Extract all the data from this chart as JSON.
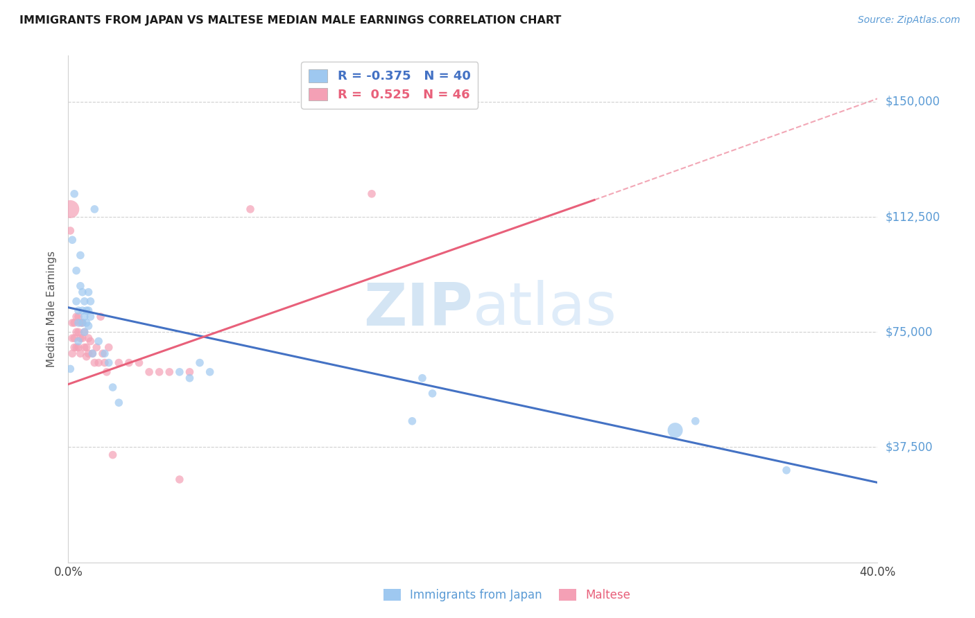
{
  "title": "IMMIGRANTS FROM JAPAN VS MALTESE MEDIAN MALE EARNINGS CORRELATION CHART",
  "source": "Source: ZipAtlas.com",
  "ylabel": "Median Male Earnings",
  "yticks": [
    37500,
    75000,
    112500,
    150000
  ],
  "ytick_labels": [
    "$37,500",
    "$75,000",
    "$112,500",
    "$150,000"
  ],
  "xmin": 0.0,
  "xmax": 0.4,
  "ymin": 0,
  "ymax": 165000,
  "legend_japan": "Immigrants from Japan",
  "legend_maltese": "Maltese",
  "r_japan": "-0.375",
  "n_japan": "40",
  "r_maltese": "0.525",
  "n_maltese": "46",
  "color_japan": "#9ec8f0",
  "color_maltese": "#f4a0b5",
  "line_color_japan": "#4472c4",
  "line_color_maltese": "#e8607a",
  "watermark_zip": "ZIP",
  "watermark_atlas": "atlas",
  "japan_x": [
    0.001,
    0.002,
    0.003,
    0.004,
    0.004,
    0.005,
    0.005,
    0.005,
    0.006,
    0.006,
    0.007,
    0.007,
    0.007,
    0.008,
    0.008,
    0.008,
    0.009,
    0.009,
    0.01,
    0.01,
    0.01,
    0.011,
    0.011,
    0.012,
    0.013,
    0.015,
    0.018,
    0.02,
    0.022,
    0.025,
    0.055,
    0.06,
    0.065,
    0.07,
    0.17,
    0.175,
    0.18,
    0.3,
    0.31,
    0.355
  ],
  "japan_y": [
    63000,
    105000,
    120000,
    95000,
    85000,
    82000,
    78000,
    72000,
    100000,
    90000,
    88000,
    82000,
    78000,
    85000,
    80000,
    75000,
    82000,
    78000,
    88000,
    82000,
    77000,
    85000,
    80000,
    68000,
    115000,
    72000,
    68000,
    65000,
    57000,
    52000,
    62000,
    60000,
    65000,
    62000,
    46000,
    60000,
    55000,
    43000,
    46000,
    30000
  ],
  "japan_size": [
    70,
    70,
    70,
    70,
    70,
    70,
    70,
    70,
    70,
    70,
    70,
    70,
    70,
    70,
    70,
    70,
    70,
    70,
    70,
    70,
    70,
    70,
    70,
    70,
    70,
    70,
    70,
    70,
    70,
    70,
    70,
    70,
    70,
    70,
    70,
    70,
    70,
    250,
    70,
    70
  ],
  "maltese_x": [
    0.001,
    0.001,
    0.002,
    0.002,
    0.002,
    0.003,
    0.003,
    0.003,
    0.004,
    0.004,
    0.004,
    0.005,
    0.005,
    0.005,
    0.006,
    0.006,
    0.006,
    0.007,
    0.007,
    0.008,
    0.008,
    0.009,
    0.009,
    0.01,
    0.01,
    0.011,
    0.012,
    0.013,
    0.014,
    0.015,
    0.016,
    0.017,
    0.018,
    0.019,
    0.02,
    0.022,
    0.025,
    0.03,
    0.035,
    0.04,
    0.045,
    0.05,
    0.055,
    0.06,
    0.09,
    0.15
  ],
  "maltese_y": [
    115000,
    108000,
    78000,
    73000,
    68000,
    78000,
    73000,
    70000,
    80000,
    75000,
    70000,
    80000,
    75000,
    70000,
    78000,
    73000,
    68000,
    78000,
    73000,
    75000,
    70000,
    70000,
    67000,
    73000,
    68000,
    72000,
    68000,
    65000,
    70000,
    65000,
    80000,
    68000,
    65000,
    62000,
    70000,
    35000,
    65000,
    65000,
    65000,
    62000,
    62000,
    62000,
    27000,
    62000,
    115000,
    120000
  ],
  "maltese_size": [
    350,
    70,
    70,
    70,
    70,
    70,
    70,
    70,
    70,
    70,
    70,
    70,
    70,
    70,
    70,
    70,
    70,
    70,
    70,
    70,
    70,
    70,
    70,
    70,
    70,
    70,
    70,
    70,
    70,
    70,
    70,
    70,
    70,
    70,
    70,
    70,
    70,
    70,
    70,
    70,
    70,
    70,
    70,
    70,
    70,
    70
  ],
  "japan_line_x0": 0.0,
  "japan_line_x1": 0.4,
  "japan_line_y0": 83000,
  "japan_line_y1": 26000,
  "maltese_line_x0": 0.0,
  "maltese_line_x1": 0.26,
  "maltese_line_y0": 58000,
  "maltese_line_y1": 118000,
  "dashed_line_x0": 0.26,
  "dashed_line_x1": 0.4,
  "dashed_line_y0": 118000,
  "dashed_line_y1": 151000
}
